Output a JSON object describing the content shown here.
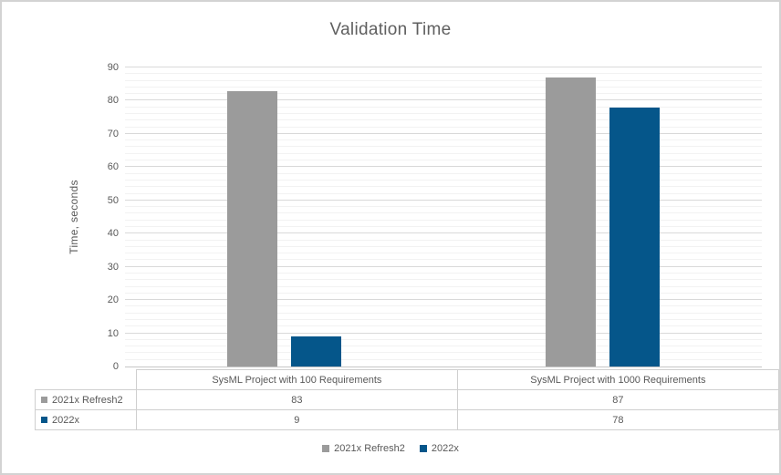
{
  "window": {
    "background": "#ffffff",
    "border_color": "#d3d3d3"
  },
  "chart_data": {
    "type": "bar",
    "title": "Validation Time",
    "xlabel": "",
    "ylabel": "Time, seconds",
    "categories": [
      "SysML Project with 100 Requirements",
      "SysML Project with 1000 Requirements"
    ],
    "series": [
      {
        "name": "2021x Refresh2",
        "color": "#9b9b9b",
        "values": [
          83,
          87
        ]
      },
      {
        "name": "2022x",
        "color": "#05568a",
        "values": [
          9,
          78
        ]
      }
    ],
    "ylim": [
      0,
      90
    ],
    "y_major_step": 10,
    "y_minor_step": 2,
    "grid": "horizontal major and minor gridlines",
    "legend_position": "bottom",
    "data_table_shown": true
  },
  "colors": {
    "title_text": "#5f5f5f",
    "axis_text": "#595959",
    "major_grid": "#d9d9d9",
    "minor_grid": "#f2f2f2",
    "axis_line": "#c6c6c6",
    "table_border": "#cfcfcf"
  }
}
